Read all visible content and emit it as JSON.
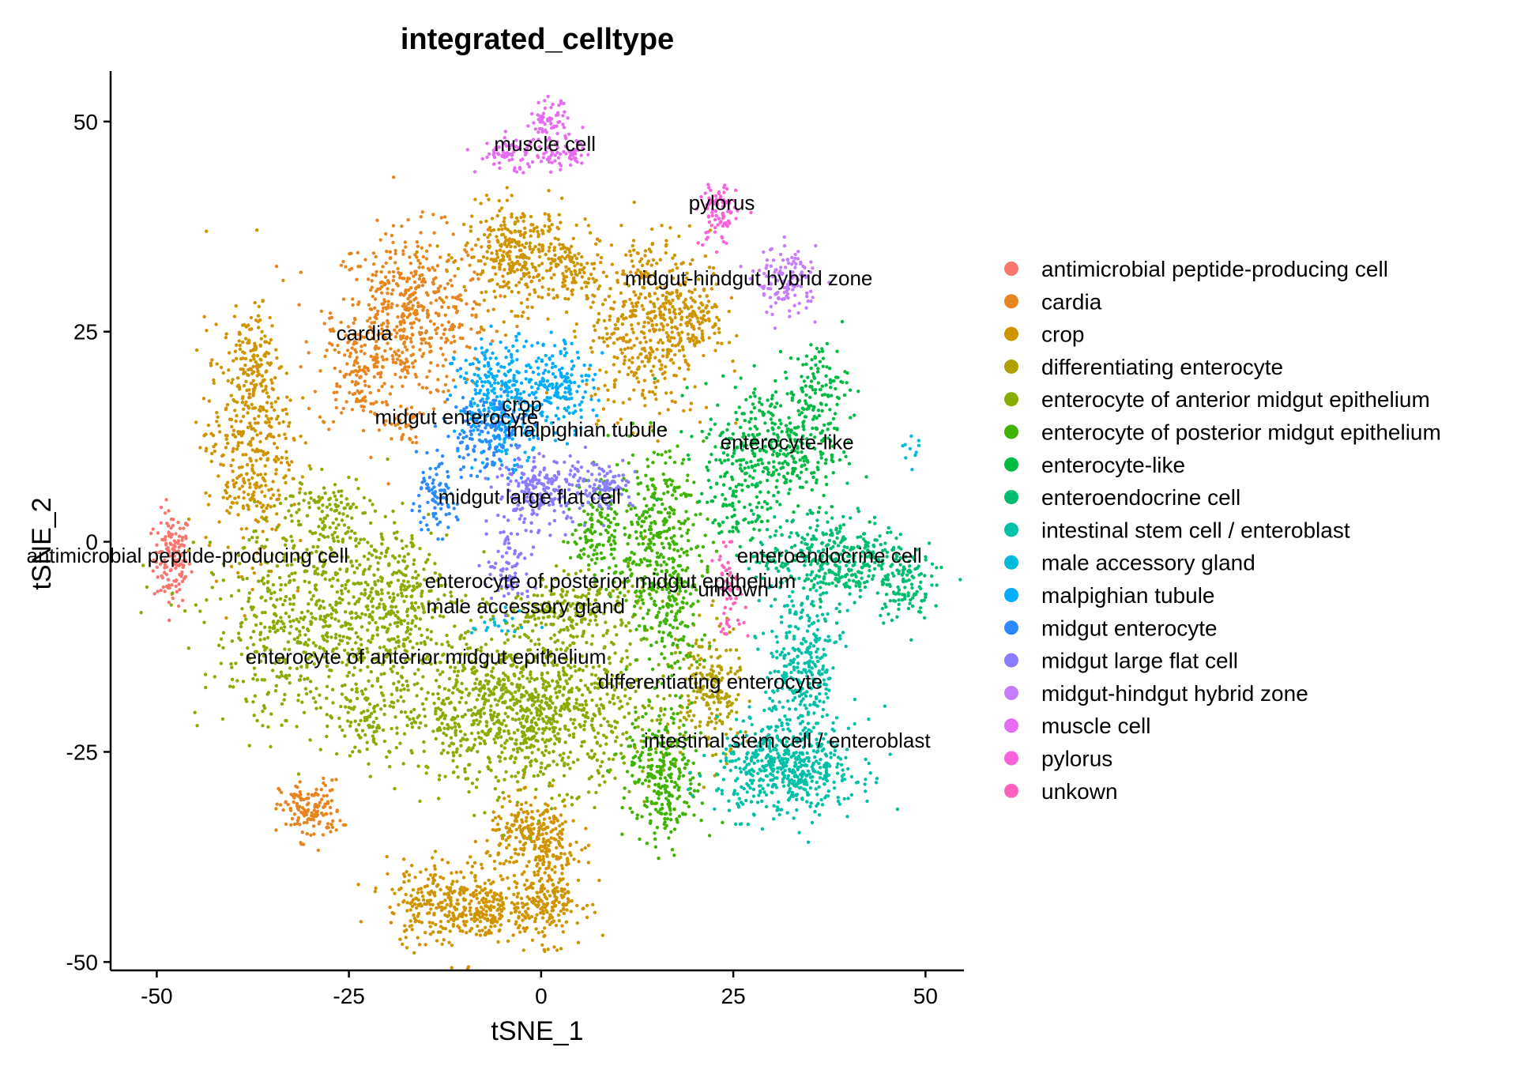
{
  "chart_data": {
    "type": "scatter",
    "title": "integrated_celltype",
    "xlabel": "tSNE_1",
    "ylabel": "tSNE_2",
    "xlim": [
      -56,
      55
    ],
    "ylim": [
      -51,
      56
    ],
    "xticks": [
      -50,
      -25,
      0,
      25,
      50
    ],
    "yticks": [
      -50,
      -25,
      0,
      25,
      50
    ],
    "grid": false,
    "legend_position": "right",
    "series": [
      {
        "name": "antimicrobial peptide-producing cell",
        "color": "#F8766D",
        "clusters": [
          {
            "cx": -48,
            "cy": -2,
            "sx": 1.2,
            "sy": 2.8,
            "n": 140
          }
        ]
      },
      {
        "name": "cardia",
        "color": "#E7851E",
        "clusters": [
          {
            "cx": -17,
            "cy": 27,
            "sx": 5.0,
            "sy": 5.0,
            "n": 520
          },
          {
            "cx": -24,
            "cy": 20,
            "sx": 2.5,
            "sy": 3.5,
            "n": 120
          },
          {
            "cx": -18,
            "cy": 14,
            "sx": 1.2,
            "sy": 1.2,
            "n": 30
          },
          {
            "cx": -30,
            "cy": -32,
            "sx": 2.0,
            "sy": 1.8,
            "n": 140
          }
        ]
      },
      {
        "name": "crop",
        "color": "#D09400",
        "clusters": [
          {
            "cx": -3,
            "cy": 34,
            "sx": 3.5,
            "sy": 3.0,
            "n": 340
          },
          {
            "cx": 4,
            "cy": 32,
            "sx": 2.0,
            "sy": 2.2,
            "n": 90
          },
          {
            "cx": 14,
            "cy": 26,
            "sx": 4.0,
            "sy": 5.5,
            "n": 480
          },
          {
            "cx": 20,
            "cy": 27,
            "sx": 2.0,
            "sy": 2.0,
            "n": 80
          },
          {
            "cx": -38,
            "cy": 12,
            "sx": 2.8,
            "sy": 7.0,
            "n": 420
          },
          {
            "cx": -37,
            "cy": 23,
            "sx": 1.2,
            "sy": 2.5,
            "n": 70
          },
          {
            "cx": -12,
            "cy": -43,
            "sx": 4.0,
            "sy": 2.5,
            "n": 320
          },
          {
            "cx": -1,
            "cy": -35,
            "sx": 3.0,
            "sy": 2.2,
            "n": 240
          },
          {
            "cx": 1,
            "cy": -42,
            "sx": 2.2,
            "sy": 2.8,
            "n": 220
          },
          {
            "cx": -6,
            "cy": -44,
            "sx": 2.5,
            "sy": 1.5,
            "n": 100
          }
        ]
      },
      {
        "name": "differentiating enterocyte",
        "color": "#B2A000",
        "clusters": [
          {
            "cx": 22,
            "cy": -18,
            "sx": 2.0,
            "sy": 4.0,
            "n": 200
          }
        ]
      },
      {
        "name": "enterocyte of anterior midgut epithelium",
        "color": "#8AAB00",
        "clusters": [
          {
            "cx": -2,
            "cy": -20,
            "sx": 8.5,
            "sy": 4.5,
            "n": 1100
          },
          {
            "cx": -29,
            "cy": -10,
            "sx": 7.5,
            "sy": 6.0,
            "n": 650
          },
          {
            "cx": -19,
            "cy": -6,
            "sx": 3.5,
            "sy": 4.0,
            "n": 230
          },
          {
            "cx": -28,
            "cy": 3,
            "sx": 3.0,
            "sy": 2.5,
            "n": 120
          },
          {
            "cx": -22,
            "cy": -21,
            "sx": 2.0,
            "sy": 3.0,
            "n": 90
          },
          {
            "cx": 4,
            "cy": -8,
            "sx": 5.0,
            "sy": 2.0,
            "n": 220
          }
        ]
      },
      {
        "name": "enterocyte of posterior midgut epithelium",
        "color": "#3EB300",
        "clusters": [
          {
            "cx": 15,
            "cy": 0,
            "sx": 3.0,
            "sy": 5.5,
            "n": 380
          },
          {
            "cx": 7,
            "cy": 2,
            "sx": 1.5,
            "sy": 3.0,
            "n": 110
          },
          {
            "cx": 16,
            "cy": -28,
            "sx": 2.5,
            "sy": 4.0,
            "n": 280
          },
          {
            "cx": 17,
            "cy": -10,
            "sx": 1.5,
            "sy": 4.0,
            "n": 90
          }
        ]
      },
      {
        "name": "enterocyte-like",
        "color": "#00BA42",
        "clusters": [
          {
            "cx": 30,
            "cy": 11,
            "sx": 4.5,
            "sy": 4.0,
            "n": 380
          },
          {
            "cx": 36,
            "cy": 18,
            "sx": 2.0,
            "sy": 3.0,
            "n": 120
          },
          {
            "cx": 25,
            "cy": 4,
            "sx": 1.8,
            "sy": 2.5,
            "n": 60
          }
        ]
      },
      {
        "name": "enteroendocrine cell",
        "color": "#00BE70",
        "clusters": [
          {
            "cx": 38,
            "cy": -2,
            "sx": 5.0,
            "sy": 2.5,
            "n": 380
          },
          {
            "cx": 47,
            "cy": -5,
            "sx": 1.8,
            "sy": 2.2,
            "n": 100
          }
        ]
      },
      {
        "name": "intestinal stem cell / enteroblast",
        "color": "#00C1A7",
        "clusters": [
          {
            "cx": 32,
            "cy": -27,
            "sx": 4.5,
            "sy": 2.8,
            "n": 520
          },
          {
            "cx": 34,
            "cy": -15,
            "sx": 2.5,
            "sy": 5.0,
            "n": 300
          }
        ]
      },
      {
        "name": "male accessory gland",
        "color": "#00BBDA",
        "clusters": [
          {
            "cx": -5,
            "cy": -10,
            "sx": 2.0,
            "sy": 0.8,
            "n": 20
          },
          {
            "cx": 48,
            "cy": 11,
            "sx": 0.6,
            "sy": 1.0,
            "n": 10
          }
        ]
      },
      {
        "name": "malpighian tubule",
        "color": "#00ACFC",
        "clusters": [
          {
            "cx": -5,
            "cy": 17,
            "sx": 3.0,
            "sy": 3.5,
            "n": 330
          },
          {
            "cx": 3,
            "cy": 19,
            "sx": 2.0,
            "sy": 2.5,
            "n": 140
          }
        ]
      },
      {
        "name": "midgut enterocyte",
        "color": "#2B89FF",
        "clusters": [
          {
            "cx": -7,
            "cy": 13,
            "sx": 2.8,
            "sy": 2.5,
            "n": 160
          },
          {
            "cx": -14,
            "cy": 5,
            "sx": 1.5,
            "sy": 2.0,
            "n": 90
          }
        ]
      },
      {
        "name": "midgut large flat cell",
        "color": "#8B7CFF",
        "clusters": [
          {
            "cx": 0,
            "cy": 6,
            "sx": 3.0,
            "sy": 2.0,
            "n": 200
          },
          {
            "cx": 8,
            "cy": 7,
            "sx": 2.0,
            "sy": 1.5,
            "n": 90
          },
          {
            "cx": -4,
            "cy": -3,
            "sx": 1.5,
            "sy": 2.5,
            "n": 80
          }
        ]
      },
      {
        "name": "midgut-hindgut hybrid zone",
        "color": "#C77CFF",
        "clusters": [
          {
            "cx": 32,
            "cy": 31,
            "sx": 2.0,
            "sy": 2.0,
            "n": 130
          }
        ]
      },
      {
        "name": "muscle cell",
        "color": "#E76BF3",
        "clusters": [
          {
            "cx": 1,
            "cy": 50,
            "sx": 1.2,
            "sy": 1.2,
            "n": 60
          },
          {
            "cx": -4,
            "cy": 46,
            "sx": 2.2,
            "sy": 1.0,
            "n": 70
          },
          {
            "cx": 3,
            "cy": 46,
            "sx": 2.0,
            "sy": 1.0,
            "n": 60
          }
        ]
      },
      {
        "name": "pylorus",
        "color": "#FA62DB",
        "clusters": [
          {
            "cx": 23,
            "cy": 39,
            "sx": 1.2,
            "sy": 2.0,
            "n": 90
          }
        ]
      },
      {
        "name": "unkown",
        "color": "#FF62BC",
        "clusters": [
          {
            "cx": 24.5,
            "cy": -6,
            "sx": 1.0,
            "sy": 2.5,
            "n": 60
          }
        ]
      }
    ],
    "annotations": [
      {
        "text": "muscle cell",
        "x": 0.5,
        "y": 46.5
      },
      {
        "text": "pylorus",
        "x": 23.5,
        "y": 39.5
      },
      {
        "text": "midgut-hindgut hybrid zone",
        "x": 27,
        "y": 30.5
      },
      {
        "text": "cardia",
        "x": -23,
        "y": 24
      },
      {
        "text": "crop",
        "x": -2.5,
        "y": 15.5
      },
      {
        "text": "midgut enterocyte",
        "x": -11,
        "y": 14
      },
      {
        "text": "malpighian tubule",
        "x": 6,
        "y": 12.5
      },
      {
        "text": "enterocyte-like",
        "x": 32,
        "y": 11
      },
      {
        "text": "midgut large flat cell",
        "x": -1.5,
        "y": 4.5
      },
      {
        "text": "antimicrobial peptide-producing cell",
        "x": -46,
        "y": -2.5
      },
      {
        "text": "enteroendocrine cell",
        "x": 37.5,
        "y": -2.5
      },
      {
        "text": "enterocyte of posterior midgut epithelium",
        "x": 9,
        "y": -5.5
      },
      {
        "text": "unkown",
        "x": 25,
        "y": -6.5
      },
      {
        "text": "male accessory gland",
        "x": -2,
        "y": -8.5
      },
      {
        "text": "enterocyte of anterior midgut epithelium",
        "x": -15,
        "y": -14.5
      },
      {
        "text": "differentiating enterocyte",
        "x": 22,
        "y": -17.5
      },
      {
        "text": "intestinal stem cell / enteroblast",
        "x": 32,
        "y": -24.5
      }
    ]
  }
}
